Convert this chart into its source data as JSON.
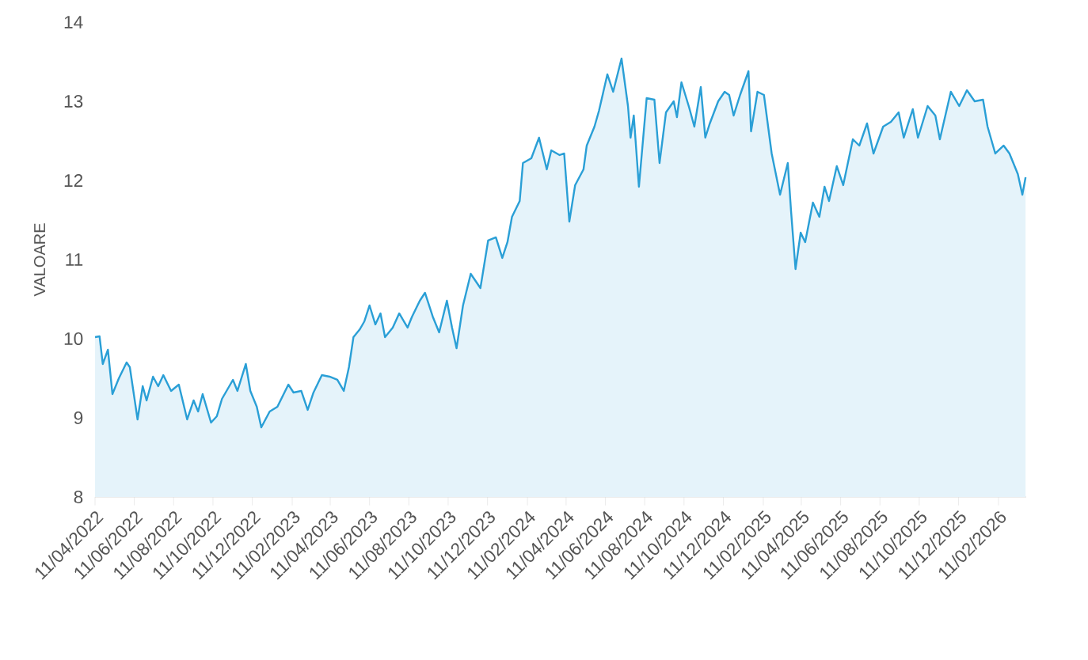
{
  "chart_data": {
    "type": "area",
    "ylabel": "VALOARE",
    "color": "#2a9fd6",
    "xlim": [
      "2022-04-11",
      "2026-03-26"
    ],
    "ylim": [
      8,
      14
    ],
    "yticks": [
      8,
      9,
      10,
      11,
      12,
      13,
      14
    ],
    "xticks": [
      {
        "value": "2022-04-11",
        "label": "11/04/2022"
      },
      {
        "value": "2022-06-11",
        "label": "11/06/2022"
      },
      {
        "value": "2022-08-11",
        "label": "11/08/2022"
      },
      {
        "value": "2022-10-11",
        "label": "11/10/2022"
      },
      {
        "value": "2022-12-11",
        "label": "11/12/2022"
      },
      {
        "value": "2023-02-11",
        "label": "11/02/2023"
      },
      {
        "value": "2023-04-11",
        "label": "11/04/2023"
      },
      {
        "value": "2023-06-11",
        "label": "11/06/2023"
      },
      {
        "value": "2023-08-11",
        "label": "11/08/2023"
      },
      {
        "value": "2023-10-11",
        "label": "11/10/2023"
      },
      {
        "value": "2023-12-11",
        "label": "11/12/2023"
      },
      {
        "value": "2024-02-11",
        "label": "11/02/2024"
      },
      {
        "value": "2024-04-11",
        "label": "11/04/2024"
      },
      {
        "value": "2024-06-11",
        "label": "11/06/2024"
      },
      {
        "value": "2024-08-11",
        "label": "11/08/2024"
      },
      {
        "value": "2024-10-11",
        "label": "11/10/2024"
      },
      {
        "value": "2024-12-11",
        "label": "11/12/2024"
      },
      {
        "value": "2025-02-11",
        "label": "11/02/2025"
      },
      {
        "value": "2025-04-11",
        "label": "11/04/2025"
      },
      {
        "value": "2025-06-11",
        "label": "11/06/2025"
      },
      {
        "value": "2025-08-11",
        "label": "11/08/2025"
      },
      {
        "value": "2025-10-11",
        "label": "11/10/2025"
      },
      {
        "value": "2025-12-11",
        "label": "11/12/2025"
      },
      {
        "value": "2026-02-11",
        "label": "11/02/2026"
      }
    ],
    "x": [
      "2022-04-11",
      "2022-04-18",
      "2022-04-23",
      "2022-05-01",
      "2022-05-08",
      "2022-05-18",
      "2022-05-30",
      "2022-06-04",
      "2022-06-16",
      "2022-06-24",
      "2022-06-30",
      "2022-07-10",
      "2022-07-18",
      "2022-07-26",
      "2022-08-07",
      "2022-08-19",
      "2022-09-01",
      "2022-09-11",
      "2022-09-18",
      "2022-09-25",
      "2022-10-08",
      "2022-10-17",
      "2022-10-25",
      "2022-11-11",
      "2022-11-18",
      "2022-12-01",
      "2022-12-08",
      "2022-12-18",
      "2022-12-25",
      "2023-01-07",
      "2023-01-19",
      "2023-02-05",
      "2023-02-13",
      "2023-02-25",
      "2023-03-07",
      "2023-03-16",
      "2023-03-29",
      "2023-04-10",
      "2023-04-22",
      "2023-05-02",
      "2023-05-10",
      "2023-05-17",
      "2023-05-27",
      "2023-06-03",
      "2023-06-11",
      "2023-06-20",
      "2023-06-28",
      "2023-07-05",
      "2023-07-17",
      "2023-07-27",
      "2023-08-09",
      "2023-08-16",
      "2023-08-28",
      "2023-09-05",
      "2023-09-17",
      "2023-09-27",
      "2023-10-09",
      "2023-10-17",
      "2023-10-24",
      "2023-11-03",
      "2023-11-15",
      "2023-11-30",
      "2023-12-12",
      "2023-12-24",
      "2024-01-03",
      "2024-01-11",
      "2024-01-18",
      "2024-01-30",
      "2024-02-04",
      "2024-02-17",
      "2024-02-29",
      "2024-03-12",
      "2024-03-19",
      "2024-04-01",
      "2024-04-08",
      "2024-04-16",
      "2024-04-25",
      "2024-05-08",
      "2024-05-13",
      "2024-05-25",
      "2024-06-01",
      "2024-06-14",
      "2024-06-23",
      "2024-07-06",
      "2024-07-16",
      "2024-07-20",
      "2024-07-25",
      "2024-08-02",
      "2024-08-14",
      "2024-08-26",
      "2024-09-03",
      "2024-09-13",
      "2024-09-25",
      "2024-09-30",
      "2024-10-07",
      "2024-10-19",
      "2024-10-27",
      "2024-11-06",
      "2024-11-13",
      "2024-11-20",
      "2024-12-03",
      "2024-12-13",
      "2024-12-20",
      "2024-12-27",
      "2025-01-06",
      "2025-01-19",
      "2025-01-23",
      "2025-02-02",
      "2025-02-12",
      "2025-02-24",
      "2025-03-09",
      "2025-03-21",
      "2025-03-26",
      "2025-04-02",
      "2025-04-10",
      "2025-04-17",
      "2025-04-29",
      "2025-05-09",
      "2025-05-17",
      "2025-05-24",
      "2025-06-05",
      "2025-06-15",
      "2025-06-30",
      "2025-07-10",
      "2025-07-22",
      "2025-08-01",
      "2025-08-16",
      "2025-08-28",
      "2025-09-09",
      "2025-09-17",
      "2025-10-01",
      "2025-10-09",
      "2025-10-24",
      "2025-11-05",
      "2025-11-12",
      "2025-11-29",
      "2025-12-12",
      "2025-12-24",
      "2026-01-05",
      "2026-01-18",
      "2026-01-25",
      "2026-02-06",
      "2026-02-19",
      "2026-02-28",
      "2026-03-13",
      "2026-03-20",
      "2026-03-25"
    ],
    "values": [
      10.02,
      10.03,
      9.68,
      9.86,
      9.3,
      9.5,
      9.7,
      9.64,
      8.98,
      9.4,
      9.22,
      9.52,
      9.4,
      9.54,
      9.34,
      9.42,
      8.98,
      9.22,
      9.08,
      9.3,
      8.94,
      9.02,
      9.24,
      9.48,
      9.34,
      9.68,
      9.34,
      9.14,
      8.88,
      9.08,
      9.14,
      9.42,
      9.32,
      9.34,
      9.1,
      9.32,
      9.54,
      9.52,
      9.48,
      9.34,
      9.64,
      10.02,
      10.12,
      10.22,
      10.42,
      10.18,
      10.32,
      10.02,
      10.14,
      10.32,
      10.14,
      10.28,
      10.48,
      10.58,
      10.28,
      10.08,
      10.48,
      10.14,
      9.88,
      10.42,
      10.82,
      10.64,
      11.24,
      11.28,
      11.02,
      11.22,
      11.54,
      11.74,
      12.22,
      12.28,
      12.54,
      12.14,
      12.38,
      12.32,
      12.34,
      11.48,
      11.94,
      12.14,
      12.44,
      12.68,
      12.88,
      13.34,
      13.12,
      13.54,
      12.94,
      12.54,
      12.82,
      11.92,
      13.04,
      13.02,
      12.22,
      12.86,
      13.0,
      12.8,
      13.24,
      12.92,
      12.68,
      13.18,
      12.54,
      12.72,
      13.0,
      13.12,
      13.08,
      12.82,
      13.08,
      13.38,
      12.62,
      13.12,
      13.08,
      12.34,
      11.82,
      12.22,
      11.62,
      10.88,
      11.34,
      11.22,
      11.72,
      11.54,
      11.92,
      11.74,
      12.18,
      11.94,
      12.52,
      12.44,
      12.72,
      12.34,
      12.68,
      12.74,
      12.86,
      12.54,
      12.9,
      12.54,
      12.94,
      12.82,
      12.52,
      13.12,
      12.94,
      13.14,
      13.0,
      13.02,
      12.68,
      12.34,
      12.44,
      12.34,
      12.08,
      11.82,
      12.04
    ]
  }
}
